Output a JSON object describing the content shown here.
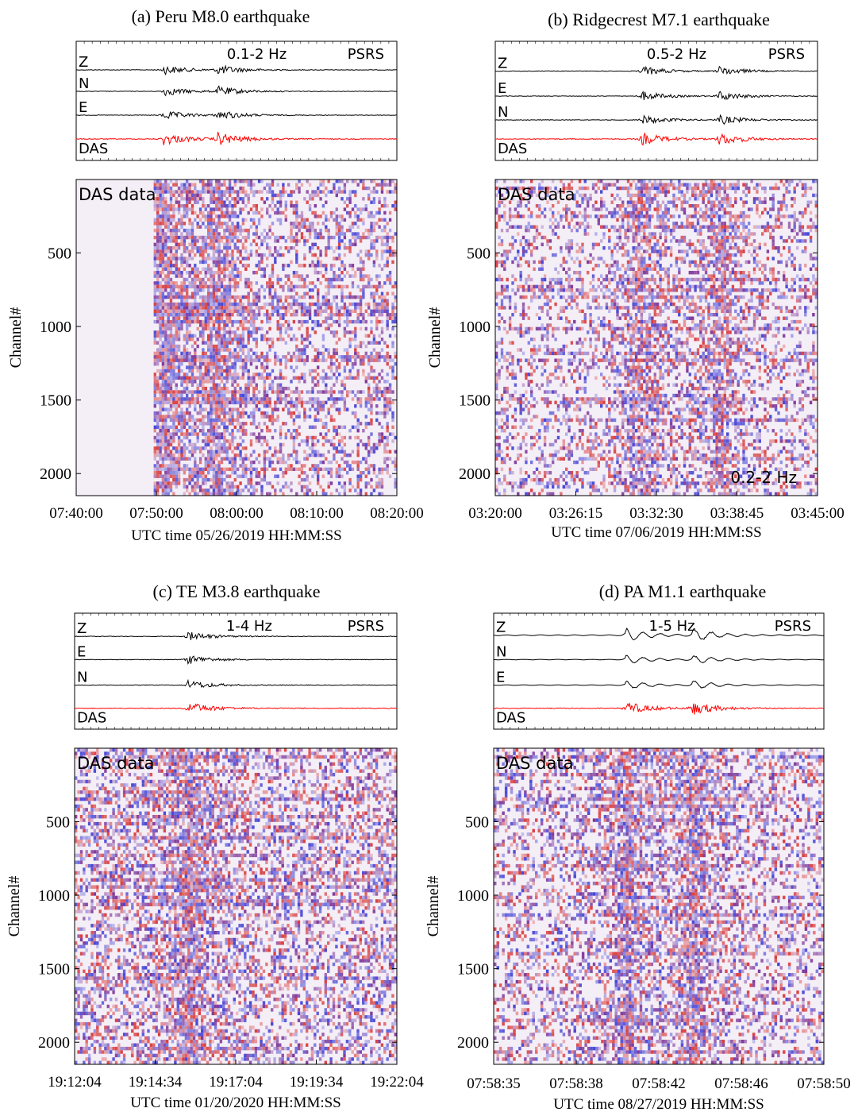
{
  "chart_data": [
    {
      "type": "heatmap",
      "title": "(a) Peru M8.0 earthquake",
      "waveform_labels": [
        "Z",
        "N",
        "E",
        "DAS"
      ],
      "band_label": "0.1-2 Hz",
      "station_label": "PSRS",
      "heatmap_label": "DAS data",
      "note": "",
      "ylabel": "Channel#",
      "xlabel": "UTC time 05/26/2019 HH:MM:SS",
      "x_ticks": [
        "07:40:00",
        "07:50:00",
        "08:00:00",
        "08:10:00",
        "08:20:00"
      ],
      "x_range_seconds": [
        0,
        2400
      ],
      "y_ticks": [
        500,
        1000,
        1500,
        2000
      ],
      "y_range": [
        1,
        2150
      ],
      "events_seconds": [
        650,
        1060
      ],
      "onset_fraction": 0.235,
      "intensity": 0.65
    },
    {
      "type": "heatmap",
      "title": "(b) Ridgecrest M7.1 earthquake",
      "waveform_labels": [
        "Z",
        "E",
        "N",
        "DAS"
      ],
      "band_label": "0.5-2 Hz",
      "station_label": "PSRS",
      "heatmap_label": "DAS data",
      "note": "0.2-2 Hz",
      "ylabel": "Channel#",
      "xlabel": "UTC time 07/06/2019 HH:MM:SS",
      "x_ticks": [
        "03:20:00",
        "03:26:15",
        "03:32:30",
        "03:38:45",
        "03:45:00"
      ],
      "x_range_seconds": [
        0,
        1500
      ],
      "y_ticks": [
        500,
        1000,
        1500,
        2000
      ],
      "y_range": [
        1,
        2150
      ],
      "events_seconds": [
        680,
        1040
      ],
      "onset_fraction": 0.0,
      "intensity": 0.5
    },
    {
      "type": "heatmap",
      "title": "(c) TE M3.8 earthquake",
      "waveform_labels": [
        "Z",
        "E",
        "N",
        "DAS"
      ],
      "band_label": "1-4 Hz",
      "station_label": "PSRS",
      "heatmap_label": "DAS data",
      "note": "",
      "ylabel": "Channel#",
      "xlabel": "UTC time 01/20/2020 HH:MM:SS",
      "x_ticks": [
        "19:12:04",
        "19:14:34",
        "19:17:04",
        "19:19:34",
        "19:22:04"
      ],
      "x_range_seconds": [
        0,
        600
      ],
      "y_ticks": [
        500,
        1000,
        1500,
        2000
      ],
      "y_range": [
        1,
        2150
      ],
      "events_seconds": [
        210
      ],
      "onset_fraction": 0.0,
      "intensity": 0.75
    },
    {
      "type": "heatmap",
      "title": "(d) PA M1.1 earthquake",
      "waveform_labels": [
        "Z",
        "N",
        "E",
        "DAS"
      ],
      "band_label": "1-5 Hz",
      "station_label": "PSRS",
      "heatmap_label": "DAS data",
      "note": "",
      "ylabel": "Channel#",
      "xlabel": "UTC time 08/27/2019 HH:MM:SS",
      "x_ticks": [
        "07:58:35",
        "07:58:38",
        "07:58:42",
        "07:58:46",
        "07:58:50"
      ],
      "x_range_seconds": [
        0,
        15
      ],
      "y_ticks": [
        500,
        1000,
        1500,
        2000
      ],
      "y_range": [
        1,
        2150
      ],
      "events_seconds": [
        6,
        9
      ],
      "onset_fraction": 0.0,
      "intensity": 0.6
    }
  ],
  "colors": {
    "waveform": "#000000",
    "das": "#ff0000",
    "positive": "#d42020",
    "negative": "#2a2ad0",
    "mixed": "#6a1a8a"
  }
}
